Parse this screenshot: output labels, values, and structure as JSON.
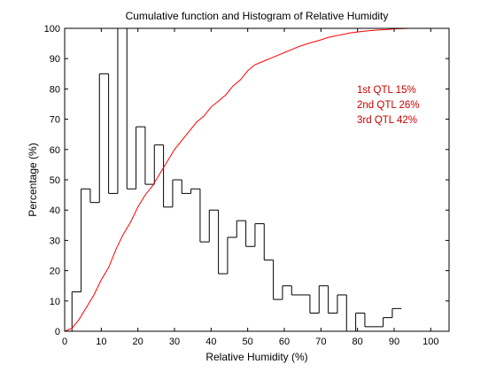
{
  "chart_data": {
    "type": "line",
    "title": "Cumulative function and Histogram of Relative Humidity",
    "xlabel": "Relative Humidity (%)",
    "ylabel": "Percentage (%)",
    "xlim": [
      0,
      105
    ],
    "ylim": [
      0,
      100
    ],
    "xticks": [
      0,
      10,
      20,
      30,
      40,
      50,
      60,
      70,
      80,
      90,
      100
    ],
    "yticks": [
      0,
      10,
      20,
      30,
      40,
      50,
      60,
      70,
      80,
      90,
      100
    ],
    "grid": false,
    "series": [
      {
        "kind": "histogram-step",
        "color": "#000000",
        "bin_edges": [
          0,
          2,
          4.5,
          7,
          9.5,
          12,
          14.5,
          17,
          19.5,
          22,
          24.5,
          27,
          29.5,
          32,
          34.5,
          37,
          39.5,
          42,
          44.5,
          47,
          49.5,
          52,
          54.5,
          57,
          59.5,
          62,
          64.5,
          67,
          69.5,
          72,
          74.5,
          77,
          79.5,
          82,
          84.5,
          87,
          89.5,
          92
        ],
        "values": [
          0,
          13,
          47,
          42.5,
          85,
          45.5,
          100,
          47,
          67.5,
          48.5,
          61.5,
          41,
          50,
          45.5,
          47,
          29.5,
          40,
          19,
          31,
          36.5,
          28,
          35.5,
          23.5,
          10.5,
          15,
          12,
          12,
          6,
          15,
          6,
          12,
          0,
          6,
          1.5,
          1.5,
          4.5,
          7.5
        ]
      },
      {
        "kind": "cumulative",
        "color": "#ff0000",
        "x": [
          0,
          2,
          4,
          6,
          8,
          10,
          12,
          14,
          16,
          18,
          20,
          22,
          24,
          26,
          28,
          30,
          32,
          34,
          36,
          38,
          40,
          42,
          44,
          46,
          48,
          50,
          52,
          54,
          56,
          58,
          60,
          62,
          64,
          66,
          68,
          70,
          72,
          74,
          76,
          78,
          80,
          82,
          84,
          86,
          88,
          90,
          92,
          94,
          96,
          98,
          100,
          102
        ],
        "y": [
          0,
          1,
          4,
          8,
          12,
          17,
          21,
          27,
          32,
          36,
          41,
          45,
          48,
          52,
          56,
          60,
          63,
          66,
          69,
          71,
          74,
          76,
          78,
          81,
          83,
          86,
          88,
          89,
          90,
          91,
          92,
          93,
          94,
          94.8,
          95.5,
          96.2,
          97,
          97.5,
          98,
          98.5,
          98.8,
          99.1,
          99.3,
          99.5,
          99.6,
          99.8,
          99.9,
          100,
          100,
          100,
          100,
          100
        ]
      }
    ],
    "annotations": [
      {
        "text": "1st QTL  15%",
        "color": "#cc0000"
      },
      {
        "text": "2nd QTL  26%",
        "color": "#cc0000"
      },
      {
        "text": "3rd QTL  42%",
        "color": "#cc0000"
      }
    ]
  }
}
